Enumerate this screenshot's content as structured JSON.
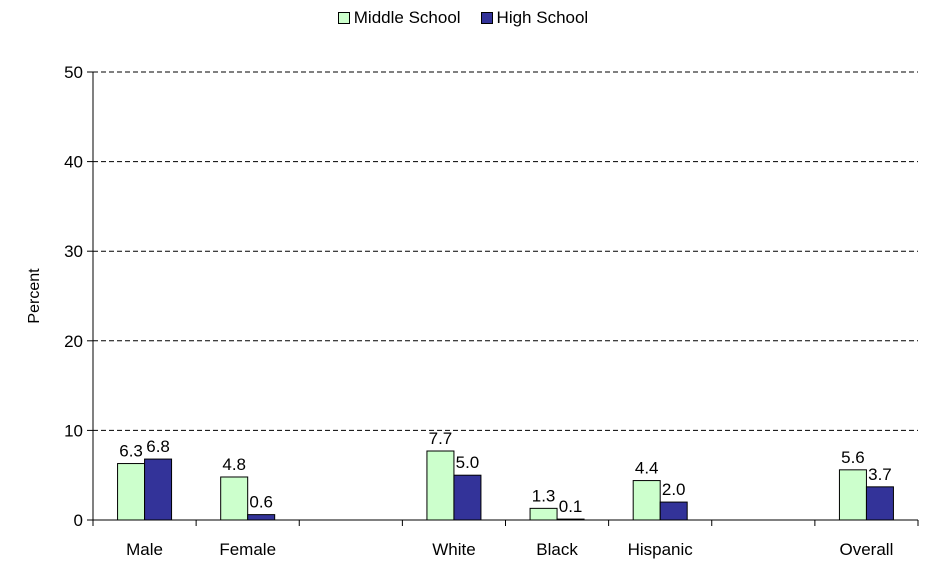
{
  "chart_data": {
    "type": "bar",
    "title": "",
    "xlabel": "",
    "ylabel": "Percent",
    "ylim": [
      0,
      50
    ],
    "yticks": [
      0,
      10,
      20,
      30,
      40,
      50
    ],
    "grid": true,
    "legend_position": "top",
    "slots": [
      "Male",
      "Female",
      "",
      "White",
      "Black",
      "Hispanic",
      "",
      "Overall"
    ],
    "series": [
      {
        "name": "Middle School",
        "color": "#ccffcc",
        "values": [
          6.3,
          4.8,
          null,
          7.7,
          1.3,
          4.4,
          null,
          5.6
        ]
      },
      {
        "name": "High School",
        "color": "#333399",
        "values": [
          6.8,
          0.6,
          null,
          5.0,
          0.1,
          2.0,
          null,
          3.7
        ]
      }
    ]
  }
}
